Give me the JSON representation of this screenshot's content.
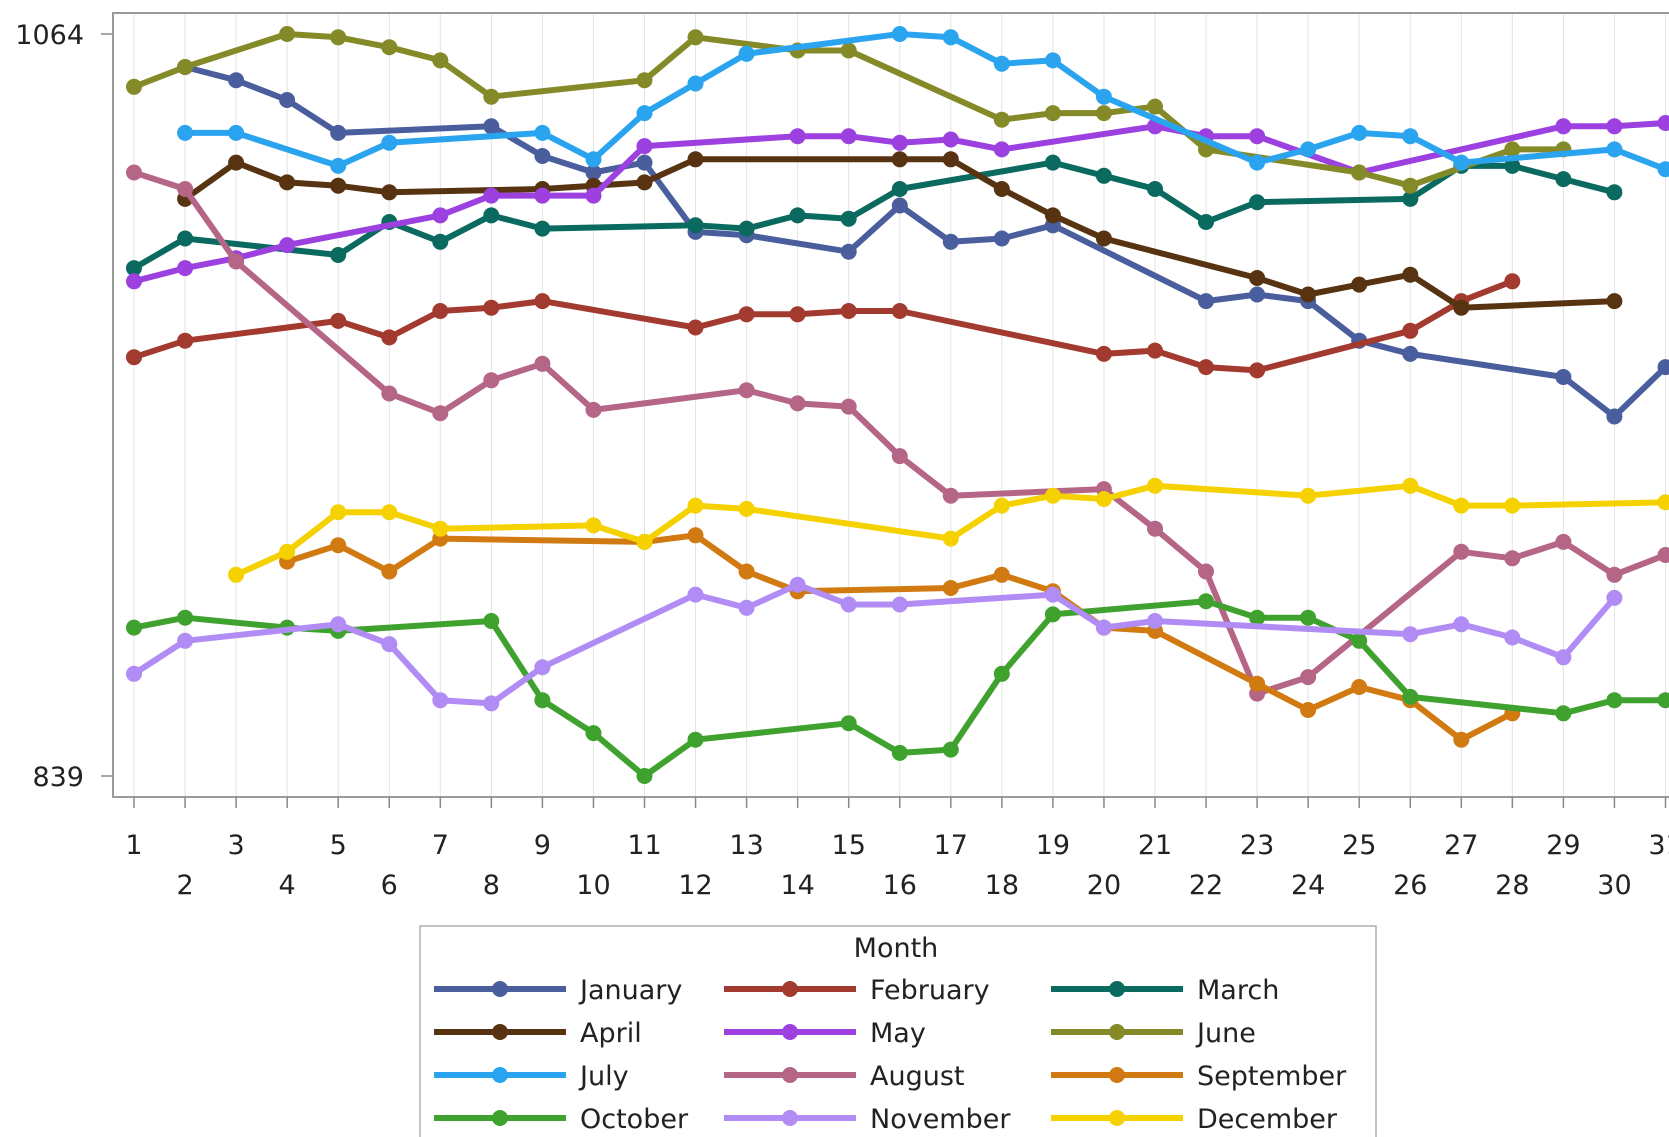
{
  "chart_data": {
    "type": "line",
    "title": "",
    "xlabel": "",
    "ylabel": "",
    "x": [
      1,
      2,
      3,
      4,
      5,
      6,
      7,
      8,
      9,
      10,
      11,
      12,
      13,
      14,
      15,
      16,
      17,
      18,
      19,
      20,
      21,
      22,
      23,
      24,
      25,
      26,
      27,
      28,
      29,
      30,
      31
    ],
    "x_tick_labels": [
      "1",
      "2",
      "3",
      "4",
      "5",
      "6",
      "7",
      "8",
      "9",
      "10",
      "11",
      "12",
      "13",
      "14",
      "15",
      "16",
      "17",
      "18",
      "19",
      "20",
      "21",
      "22",
      "23",
      "24",
      "25",
      "26",
      "27",
      "28",
      "29",
      "30",
      "31"
    ],
    "y_tick_labels": [
      "1064",
      "839"
    ],
    "ylim": [
      839,
      1064
    ],
    "grid": true,
    "legend": {
      "title": "Month",
      "position": "bottom"
    },
    "series": [
      {
        "name": "January",
        "color": "#4a5e9e",
        "values": [
          null,
          1054,
          1050,
          1044,
          1034,
          null,
          null,
          1036,
          1027,
          1022,
          1025,
          1004,
          1003,
          null,
          998,
          1012,
          1001,
          1002,
          1006,
          null,
          null,
          983,
          985,
          983,
          971,
          967,
          null,
          null,
          960,
          948,
          963
        ]
      },
      {
        "name": "February",
        "color": "#a33a2f",
        "values": [
          966,
          971,
          null,
          null,
          977,
          972,
          980,
          981,
          983,
          null,
          null,
          975,
          979,
          979,
          980,
          980,
          null,
          null,
          null,
          967,
          968,
          963,
          962,
          null,
          null,
          974,
          983,
          989,
          null,
          null,
          null
        ]
      },
      {
        "name": "March",
        "color": "#0b6a5f",
        "values": [
          993,
          1002,
          null,
          null,
          997,
          1007,
          1001,
          1009,
          1005,
          null,
          null,
          1006,
          1005,
          1009,
          1008,
          1017,
          null,
          null,
          1025,
          1021,
          1017,
          1007,
          1013,
          null,
          null,
          1014,
          1024,
          1024,
          1020,
          1016,
          null
        ]
      },
      {
        "name": "April",
        "color": "#573312",
        "values": [
          null,
          1014,
          1025,
          1019,
          1018,
          1016,
          null,
          null,
          1017,
          1018,
          1019,
          1026,
          null,
          null,
          null,
          1026,
          1026,
          1017,
          1009,
          1002,
          null,
          null,
          990,
          985,
          988,
          991,
          981,
          null,
          null,
          983,
          null
        ]
      },
      {
        "name": "May",
        "color": "#9c41e0",
        "values": [
          989,
          993,
          996,
          1000,
          null,
          null,
          1009,
          1015,
          1015,
          1015,
          1030,
          null,
          null,
          1033,
          1033,
          1031,
          1032,
          1029,
          null,
          null,
          1036,
          1033,
          1033,
          null,
          1022,
          null,
          null,
          null,
          1036,
          1036,
          1037
        ]
      },
      {
        "name": "June",
        "color": "#848a28",
        "values": [
          1048,
          1054,
          null,
          1064,
          1063,
          1060,
          1056,
          1045,
          null,
          null,
          1050,
          1063,
          null,
          1059,
          1059,
          null,
          null,
          1038,
          1040,
          1040,
          1042,
          1029,
          null,
          null,
          1022,
          1018,
          null,
          1029,
          1029,
          null,
          null
        ]
      },
      {
        "name": "July",
        "color": "#2ba4f0",
        "values": [
          null,
          1034,
          1034,
          null,
          1024,
          1031,
          null,
          null,
          1034,
          1026,
          1040,
          1049,
          1058,
          null,
          null,
          1064,
          1063,
          1055,
          1056,
          1045,
          null,
          null,
          1025,
          1029,
          1034,
          1033,
          1025,
          null,
          null,
          1029,
          1023
        ]
      },
      {
        "name": "August",
        "color": "#b56586",
        "values": [
          1022,
          1017,
          995,
          null,
          null,
          955,
          949,
          959,
          964,
          950,
          null,
          null,
          956,
          952,
          951,
          936,
          924,
          null,
          null,
          926,
          914,
          901,
          864,
          869,
          null,
          null,
          907,
          905,
          910,
          900,
          906
        ]
      },
      {
        "name": "September",
        "color": "#d17a12",
        "values": [
          null,
          null,
          null,
          904,
          909,
          901,
          911,
          null,
          null,
          null,
          910,
          912,
          901,
          895,
          null,
          null,
          896,
          900,
          895,
          884,
          883,
          null,
          867,
          859,
          866,
          862,
          850,
          858,
          null,
          null,
          null
        ]
      },
      {
        "name": "October",
        "color": "#3fa22e",
        "values": [
          884,
          887,
          null,
          884,
          883,
          null,
          null,
          886,
          862,
          852,
          839,
          850,
          null,
          null,
          855,
          846,
          847,
          870,
          888,
          null,
          null,
          892,
          887,
          887,
          880,
          863,
          null,
          null,
          858,
          862,
          862
        ]
      },
      {
        "name": "November",
        "color": "#b18cf5",
        "values": [
          870,
          880,
          null,
          null,
          885,
          879,
          862,
          861,
          872,
          null,
          null,
          894,
          890,
          897,
          891,
          891,
          null,
          null,
          894,
          884,
          886,
          null,
          null,
          null,
          null,
          882,
          885,
          881,
          875,
          893,
          null
        ]
      },
      {
        "name": "December",
        "color": "#f5d100",
        "values": [
          null,
          null,
          900,
          907,
          919,
          919,
          914,
          null,
          null,
          915,
          910,
          921,
          920,
          null,
          null,
          null,
          911,
          921,
          924,
          923,
          927,
          null,
          null,
          924,
          null,
          927,
          921,
          921,
          null,
          null,
          922
        ]
      }
    ]
  }
}
